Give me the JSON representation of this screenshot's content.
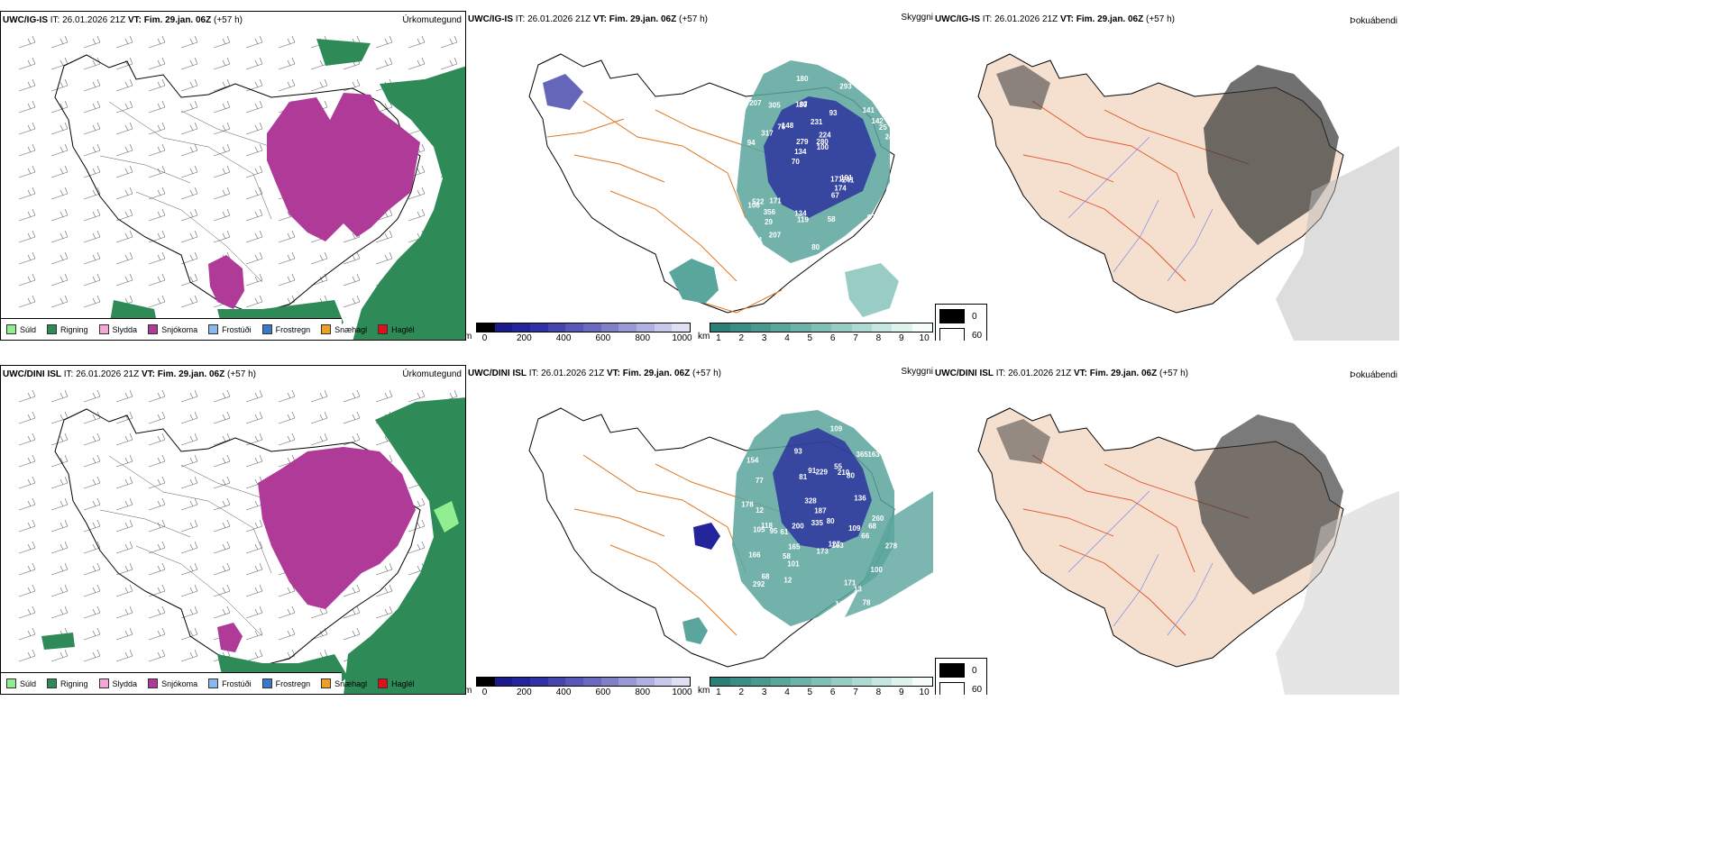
{
  "headers": {
    "top": {
      "model": "UWC/IG-IS",
      "it": "IT: 26.01.2026 21Z",
      "vt": "VT: Fim. 29.jan. 06Z",
      "lead": "(+57 h)"
    },
    "bottom": {
      "model": "UWC/DINI ISL",
      "it": "IT: 26.01.2026 21Z",
      "vt": "VT: Fim. 29.jan. 06Z",
      "lead": "(+57 h)"
    }
  },
  "panel_titles": {
    "precip": "Úrkomutegund",
    "visibility": "Skyggni",
    "fog": "Þokuábendi"
  },
  "precip_legend": [
    {
      "label": "Súld",
      "color": "#90ee90"
    },
    {
      "label": "Rigning",
      "color": "#2e8b57"
    },
    {
      "label": "Slydda",
      "color": "#f4a6d7"
    },
    {
      "label": "Snjókoma",
      "color": "#b03a97"
    },
    {
      "label": "Frostúði",
      "color": "#87b8f0"
    },
    {
      "label": "Frostregn",
      "color": "#3a78c8"
    },
    {
      "label": "Snæhagl",
      "color": "#f0a020"
    },
    {
      "label": "Haglél",
      "color": "#e0101a"
    }
  ],
  "vis_bar_m": {
    "unit": "m",
    "ticks": [
      "0",
      "200",
      "400",
      "600",
      "800",
      "1000"
    ],
    "colors": [
      "#000000",
      "#1a1a8a",
      "#23239c",
      "#3030a8",
      "#4545b0",
      "#5858b8",
      "#6a6ac0",
      "#8080c8",
      "#9898d4",
      "#b0b0e0",
      "#c8c8ea",
      "#e0e0f4"
    ]
  },
  "vis_bar_km": {
    "unit": "km",
    "ticks": [
      "1",
      "2",
      "3",
      "4",
      "5",
      "6",
      "7",
      "8",
      "9",
      "10"
    ],
    "colors": [
      "#2a7f78",
      "#3a8c84",
      "#4a9990",
      "#5aa59c",
      "#6cb2a9",
      "#80bfb6",
      "#96ccc4",
      "#aed9d2",
      "#c6e6e0",
      "#def2ee",
      "#f6fcfb"
    ]
  },
  "fog_legend": [
    {
      "label": "0",
      "color": "#000000"
    },
    {
      "label": "60",
      "color": "#ffffff"
    }
  ],
  "vis_labels_top": [
    "92",
    "94",
    "71",
    "70",
    "93",
    "51",
    "187",
    "231",
    "522",
    "148",
    "179",
    "29",
    "80",
    "224",
    "241",
    "207",
    "180",
    "241",
    "171",
    "142",
    "134",
    "134",
    "279",
    "305",
    "293",
    "171",
    "192",
    "92",
    "191",
    "80",
    "76",
    "317",
    "67",
    "207",
    "25",
    "280",
    "427",
    "119",
    "100",
    "106",
    "141",
    "523",
    "174",
    "58",
    "356",
    "105"
  ],
  "vis_labels_bottom": [
    "78",
    "118",
    "127",
    "154",
    "100",
    "77",
    "68",
    "61",
    "80",
    "91",
    "210",
    "13",
    "101",
    "93",
    "80",
    "166",
    "109",
    "187",
    "178",
    "292",
    "66",
    "229",
    "136",
    "278",
    "260",
    "12",
    "95",
    "335",
    "328",
    "163",
    "163",
    "105",
    "58",
    "55",
    "81",
    "66",
    "68",
    "171",
    "365",
    "141",
    "165",
    "173",
    "12",
    "109",
    "200"
  ]
}
